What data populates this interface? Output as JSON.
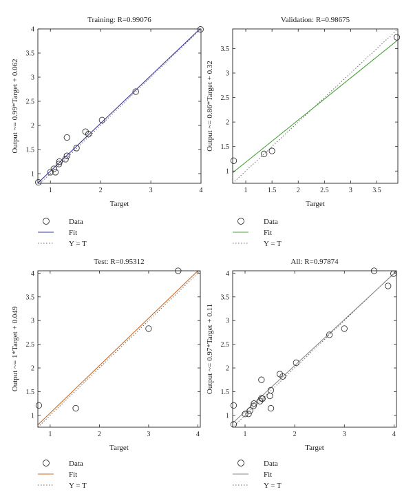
{
  "chart_data": [
    {
      "type": "scatter",
      "title": "Training: R=0.99076",
      "xlabel": "Target",
      "ylabel": "Output ~= 0.99*Target + 0.062",
      "xlim": [
        0.75,
        4.0
      ],
      "ylim": [
        0.8,
        4.0
      ],
      "xticks": [
        "1",
        "2",
        "3",
        "4"
      ],
      "yticks": [
        "1",
        "1.5",
        "2",
        "2.5",
        "3",
        "3.5",
        "4"
      ],
      "grid": false,
      "fit_color": "#3a3aa0",
      "fit": {
        "slope": 0.99,
        "intercept": 0.062
      },
      "points": [
        {
          "x": 0.76,
          "y": 0.82
        },
        {
          "x": 1.0,
          "y": 1.03
        },
        {
          "x": 1.07,
          "y": 1.1
        },
        {
          "x": 1.1,
          "y": 1.03
        },
        {
          "x": 1.17,
          "y": 1.2
        },
        {
          "x": 1.18,
          "y": 1.25
        },
        {
          "x": 1.3,
          "y": 1.3
        },
        {
          "x": 1.33,
          "y": 1.37
        },
        {
          "x": 1.33,
          "y": 1.75
        },
        {
          "x": 1.52,
          "y": 1.53
        },
        {
          "x": 1.7,
          "y": 1.87
        },
        {
          "x": 1.76,
          "y": 1.82
        },
        {
          "x": 2.03,
          "y": 2.11
        },
        {
          "x": 2.7,
          "y": 2.7
        },
        {
          "x": 3.99,
          "y": 3.99
        }
      ],
      "legend": [
        "Data",
        "Fit",
        "Y = T"
      ]
    },
    {
      "type": "scatter",
      "title": "Validation: R=0.98675",
      "xlabel": "Target",
      "ylabel": "Output ~= 0.86*Target + 0.32",
      "xlim": [
        0.75,
        3.9
      ],
      "ylim": [
        0.75,
        3.9
      ],
      "xticks": [
        "1",
        "1.5",
        "2",
        "2.5",
        "3",
        "3.5"
      ],
      "yticks": [
        "1",
        "1.5",
        "2",
        "2.5",
        "3",
        "3.5"
      ],
      "grid": false,
      "fit_color": "#4aa03a",
      "fit": {
        "slope": 0.86,
        "intercept": 0.32
      },
      "points": [
        {
          "x": 0.77,
          "y": 1.21
        },
        {
          "x": 1.35,
          "y": 1.35
        },
        {
          "x": 1.5,
          "y": 1.41
        },
        {
          "x": 3.88,
          "y": 3.73
        }
      ],
      "legend": [
        "Data",
        "Fit",
        "Y = T"
      ]
    },
    {
      "type": "scatter",
      "title": "Test: R=0.95312",
      "xlabel": "Target",
      "ylabel": "Output ~= 1*Target + 0.049",
      "xlim": [
        0.75,
        4.05
      ],
      "ylim": [
        0.75,
        4.05
      ],
      "xticks": [
        "1",
        "2",
        "3",
        "4"
      ],
      "yticks": [
        "1",
        "1.5",
        "2",
        "2.5",
        "3",
        "3.5",
        "4"
      ],
      "grid": false,
      "fit_color": "#d2691e",
      "fit": {
        "slope": 1.0,
        "intercept": 0.049
      },
      "points": [
        {
          "x": 0.77,
          "y": 1.21
        },
        {
          "x": 1.52,
          "y": 1.15
        },
        {
          "x": 3.0,
          "y": 2.83
        },
        {
          "x": 3.6,
          "y": 4.05
        }
      ],
      "legend": [
        "Data",
        "Fit",
        "Y = T"
      ]
    },
    {
      "type": "scatter",
      "title": "All: R=0.97874",
      "xlabel": "Target",
      "ylabel": "Output ~= 0.97*Target + 0.11",
      "xlim": [
        0.75,
        4.05
      ],
      "ylim": [
        0.75,
        4.05
      ],
      "xticks": [
        "1",
        "2",
        "3",
        "4"
      ],
      "yticks": [
        "1",
        "1.5",
        "2",
        "2.5",
        "3",
        "3.5",
        "4"
      ],
      "grid": false,
      "fit_color": "#8a8a8a",
      "fit": {
        "slope": 0.97,
        "intercept": 0.11
      },
      "points": [
        {
          "x": 0.77,
          "y": 0.81
        },
        {
          "x": 0.77,
          "y": 1.21
        },
        {
          "x": 1.0,
          "y": 1.03
        },
        {
          "x": 1.07,
          "y": 1.03
        },
        {
          "x": 1.1,
          "y": 1.1
        },
        {
          "x": 1.17,
          "y": 1.2
        },
        {
          "x": 1.18,
          "y": 1.25
        },
        {
          "x": 1.3,
          "y": 1.3
        },
        {
          "x": 1.33,
          "y": 1.36
        },
        {
          "x": 1.35,
          "y": 1.35
        },
        {
          "x": 1.33,
          "y": 1.75
        },
        {
          "x": 1.5,
          "y": 1.41
        },
        {
          "x": 1.52,
          "y": 1.53
        },
        {
          "x": 1.52,
          "y": 1.15
        },
        {
          "x": 1.7,
          "y": 1.87
        },
        {
          "x": 1.76,
          "y": 1.82
        },
        {
          "x": 2.03,
          "y": 2.11
        },
        {
          "x": 2.7,
          "y": 2.7
        },
        {
          "x": 3.0,
          "y": 2.83
        },
        {
          "x": 3.6,
          "y": 4.05
        },
        {
          "x": 3.88,
          "y": 3.73
        },
        {
          "x": 3.99,
          "y": 3.99
        }
      ],
      "legend": [
        "Data",
        "Fit",
        "Y = T"
      ]
    }
  ]
}
